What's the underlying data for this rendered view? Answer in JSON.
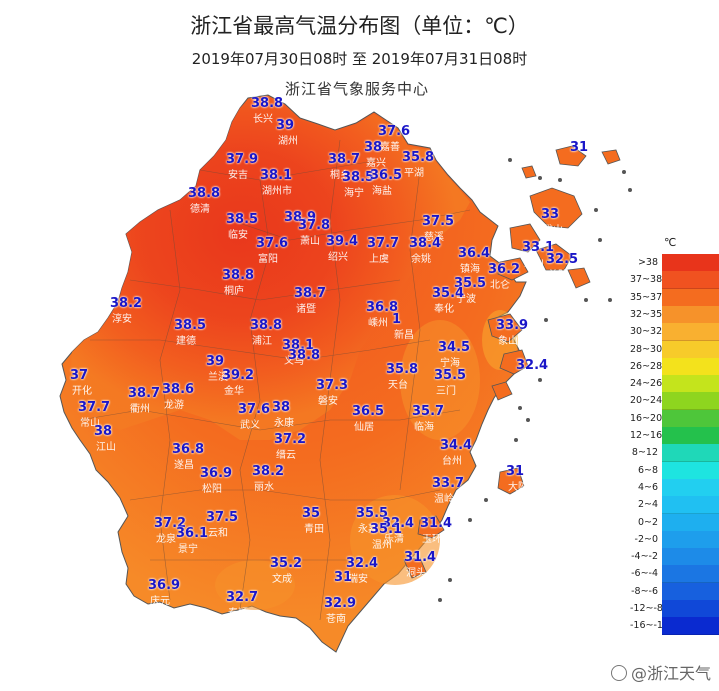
{
  "title": "浙江省最高气温分布图（单位：℃）",
  "subtitle": "2019年07月30日08时   至   2019年07月31日08时",
  "organization": "浙江省气象服务中心",
  "legend": {
    "unit": "℃",
    "items": [
      {
        "label": ">38",
        "color": "#e8341b"
      },
      {
        "label": "37~38",
        "color": "#f05220"
      },
      {
        "label": "35~37",
        "color": "#f46c1f"
      },
      {
        "label": "32~35",
        "color": "#f6922a"
      },
      {
        "label": "30~32",
        "color": "#f9b030"
      },
      {
        "label": "28~30",
        "color": "#f7cb2a"
      },
      {
        "label": "26~28",
        "color": "#f3e21c"
      },
      {
        "label": "24~26",
        "color": "#c4e41c"
      },
      {
        "label": "20~24",
        "color": "#8ed51f"
      },
      {
        "label": "16~20",
        "color": "#4ec63a"
      },
      {
        "label": "12~16",
        "color": "#24c14c"
      },
      {
        "label": "8~12",
        "color": "#1fd8b8"
      },
      {
        "label": "6~8",
        "color": "#1ee4e0"
      },
      {
        "label": "4~6",
        "color": "#22cff0"
      },
      {
        "label": "2~4",
        "color": "#20c0f2"
      },
      {
        "label": "0~2",
        "color": "#1eafef"
      },
      {
        "label": "-2~0",
        "color": "#1e9eec"
      },
      {
        "label": "-4~-2",
        "color": "#1d8be8"
      },
      {
        "label": "-6~-4",
        "color": "#1b76e3"
      },
      {
        "label": "-8~-6",
        "color": "#1760de"
      },
      {
        "label": "-12~-8",
        "color": "#1048d8"
      },
      {
        "label": "-16~-12",
        "color": "#0a2ad0"
      }
    ]
  },
  "stations": [
    {
      "value": "38.8",
      "city": "长兴"
    },
    {
      "value": "39",
      "city": "湖州"
    },
    {
      "value": "37.6",
      "city": "嘉善"
    },
    {
      "value": "31",
      "city": ""
    },
    {
      "value": "37.9",
      "city": "安吉"
    },
    {
      "value": "38.1",
      "city": "湖州市"
    },
    {
      "value": "38.7",
      "city": "桐乡"
    },
    {
      "value": "38",
      "city": "嘉兴"
    },
    {
      "value": "35.8",
      "city": "平湖"
    },
    {
      "value": "38.5",
      "city": "海宁"
    },
    {
      "value": "36.5",
      "city": "海盐"
    },
    {
      "value": "38.8",
      "city": "德清"
    },
    {
      "value": "33",
      "city": "岱山"
    },
    {
      "value": "38.5",
      "city": "临安"
    },
    {
      "value": "38.9",
      "city": ""
    },
    {
      "value": "37.8",
      "city": "萧山"
    },
    {
      "value": "37.5",
      "city": "慈溪"
    },
    {
      "value": "37.6",
      "city": "富阳"
    },
    {
      "value": "39.4",
      "city": "绍兴"
    },
    {
      "value": "37.7",
      "city": "上虞"
    },
    {
      "value": "38.4",
      "city": "余姚"
    },
    {
      "value": "36.4",
      "city": "镇海"
    },
    {
      "value": "33.1",
      "city": "舟山"
    },
    {
      "value": "38.8",
      "city": "桐庐"
    },
    {
      "value": "36.2",
      "city": "北仑"
    },
    {
      "value": "32.5",
      "city": "普陀"
    },
    {
      "value": "35.5",
      "city": "宁波"
    },
    {
      "value": "38.2",
      "city": "淳安"
    },
    {
      "value": "38.7",
      "city": "诸暨"
    },
    {
      "value": "36.8",
      "city": "嵊州"
    },
    {
      "value": "35.4",
      "city": "奉化"
    },
    {
      "value": "38.5",
      "city": "建德"
    },
    {
      "value": "38.8",
      "city": "浦江"
    },
    {
      "value": "1",
      "city": "新昌"
    },
    {
      "value": "33.9",
      "city": "象山"
    },
    {
      "value": "38.1",
      "city": "义乌"
    },
    {
      "value": "38.8",
      "city": ""
    },
    {
      "value": "34.5",
      "city": "宁海"
    },
    {
      "value": "39",
      "city": "兰溪"
    },
    {
      "value": "35.8",
      "city": "天台"
    },
    {
      "value": "32.4",
      "city": "石浦"
    },
    {
      "value": "37",
      "city": "开化"
    },
    {
      "value": "38.7",
      "city": "衢州"
    },
    {
      "value": "38.6",
      "city": "龙游"
    },
    {
      "value": "39.2",
      "city": "金华"
    },
    {
      "value": "37.3",
      "city": "磐安"
    },
    {
      "value": "35.5",
      "city": "三门"
    },
    {
      "value": "37.7",
      "city": "常山"
    },
    {
      "value": "37.6",
      "city": "武义"
    },
    {
      "value": "38",
      "city": "永康"
    },
    {
      "value": "36.5",
      "city": "仙居"
    },
    {
      "value": "35.7",
      "city": "临海"
    },
    {
      "value": "38",
      "city": "江山"
    },
    {
      "value": "37.2",
      "city": "缙云"
    },
    {
      "value": "36.8",
      "city": "遂昌"
    },
    {
      "value": "34.4",
      "city": "台州"
    },
    {
      "value": "36.9",
      "city": "松阳"
    },
    {
      "value": "38.2",
      "city": "丽水"
    },
    {
      "value": "31",
      "city": "大陈"
    },
    {
      "value": "33.7",
      "city": "温岭"
    },
    {
      "value": "35",
      "city": "青田"
    },
    {
      "value": "35.5",
      "city": "永嘉"
    },
    {
      "value": "37.2",
      "city": "龙泉"
    },
    {
      "value": "37.5",
      "city": "云和"
    },
    {
      "value": "32.4",
      "city": "乐清"
    },
    {
      "value": "31.4",
      "city": "玉环"
    },
    {
      "value": "36.1",
      "city": "景宁"
    },
    {
      "value": "35.1",
      "city": "温州"
    },
    {
      "value": "31.4",
      "city": "洞头"
    },
    {
      "value": "35.2",
      "city": "文成"
    },
    {
      "value": "32.4",
      "city": "瑞安"
    },
    {
      "value": "31",
      "city": ""
    },
    {
      "value": "36.9",
      "city": "庆元"
    },
    {
      "value": "32.7",
      "city": "泰顺"
    },
    {
      "value": "32.9",
      "city": "苍南"
    }
  ],
  "watermark": "@浙江天气"
}
